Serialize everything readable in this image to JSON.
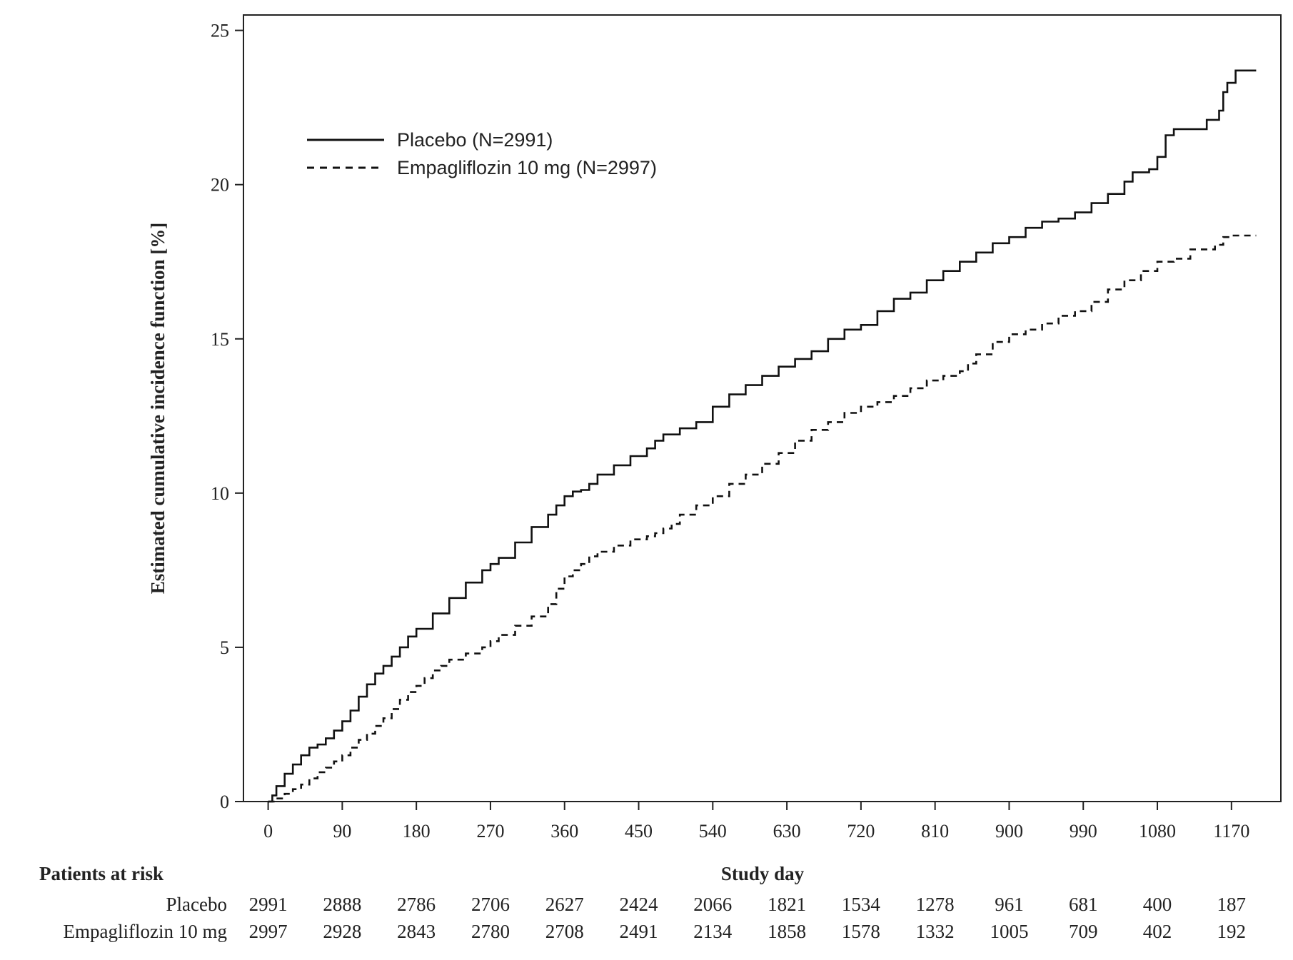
{
  "chart_data": {
    "type": "line",
    "title": "",
    "xlabel": "Study day",
    "ylabel": "Estimated cumulative incidence function [%]",
    "xlim": [
      -30,
      1230
    ],
    "ylim": [
      0,
      25.5
    ],
    "x_ticks": [
      0,
      90,
      180,
      270,
      360,
      450,
      540,
      630,
      720,
      810,
      900,
      990,
      1080,
      1170
    ],
    "y_ticks": [
      0,
      5,
      10,
      15,
      20,
      25
    ],
    "grid": false,
    "legend_position": "top-left",
    "series": [
      {
        "name": "Placebo (N=2991)",
        "style": "solid",
        "color": "#111111",
        "x": [
          0,
          5,
          10,
          20,
          30,
          40,
          50,
          60,
          70,
          80,
          90,
          100,
          110,
          120,
          130,
          140,
          150,
          160,
          170,
          180,
          200,
          220,
          240,
          260,
          270,
          280,
          300,
          320,
          340,
          350,
          360,
          370,
          380,
          390,
          400,
          420,
          440,
          460,
          470,
          480,
          500,
          520,
          540,
          560,
          580,
          600,
          620,
          640,
          660,
          680,
          700,
          720,
          740,
          760,
          780,
          800,
          820,
          840,
          860,
          880,
          900,
          920,
          940,
          960,
          980,
          1000,
          1020,
          1040,
          1050,
          1060,
          1070,
          1080,
          1090,
          1100,
          1140,
          1155,
          1160,
          1165,
          1175,
          1200
        ],
        "values": [
          0,
          0.2,
          0.5,
          0.9,
          1.2,
          1.5,
          1.75,
          1.85,
          2.05,
          2.3,
          2.6,
          2.95,
          3.4,
          3.8,
          4.15,
          4.4,
          4.7,
          5.0,
          5.35,
          5.6,
          6.1,
          6.6,
          7.1,
          7.5,
          7.7,
          7.9,
          8.4,
          8.9,
          9.3,
          9.6,
          9.9,
          10.05,
          10.1,
          10.3,
          10.6,
          10.9,
          11.2,
          11.45,
          11.7,
          11.9,
          12.1,
          12.3,
          12.8,
          13.2,
          13.5,
          13.8,
          14.1,
          14.35,
          14.6,
          15.0,
          15.3,
          15.45,
          15.9,
          16.3,
          16.5,
          16.9,
          17.2,
          17.5,
          17.8,
          18.1,
          18.3,
          18.6,
          18.8,
          18.9,
          19.1,
          19.4,
          19.7,
          20.1,
          20.4,
          20.4,
          20.5,
          20.9,
          21.6,
          21.8,
          22.1,
          22.4,
          23.0,
          23.3,
          23.7,
          23.7
        ]
      },
      {
        "name": "Empagliflozin 10 mg (N=2997)",
        "style": "dashed",
        "color": "#111111",
        "x": [
          0,
          10,
          20,
          30,
          40,
          50,
          60,
          70,
          80,
          90,
          100,
          110,
          120,
          130,
          140,
          150,
          160,
          170,
          180,
          190,
          200,
          210,
          220,
          240,
          260,
          270,
          280,
          300,
          320,
          340,
          350,
          360,
          370,
          380,
          390,
          400,
          420,
          440,
          460,
          470,
          480,
          490,
          500,
          520,
          540,
          560,
          580,
          600,
          620,
          640,
          660,
          680,
          700,
          720,
          740,
          760,
          780,
          800,
          820,
          840,
          850,
          860,
          880,
          900,
          920,
          940,
          960,
          980,
          1000,
          1020,
          1040,
          1060,
          1080,
          1100,
          1120,
          1150,
          1160,
          1170,
          1200
        ],
        "values": [
          0,
          0.1,
          0.25,
          0.4,
          0.55,
          0.75,
          0.95,
          1.1,
          1.3,
          1.5,
          1.75,
          2.0,
          2.2,
          2.45,
          2.7,
          3.0,
          3.3,
          3.55,
          3.75,
          4.0,
          4.25,
          4.4,
          4.6,
          4.8,
          5.0,
          5.2,
          5.4,
          5.7,
          6.0,
          6.4,
          6.9,
          7.3,
          7.5,
          7.7,
          7.95,
          8.1,
          8.3,
          8.5,
          8.6,
          8.7,
          8.85,
          9.0,
          9.3,
          9.6,
          9.9,
          10.3,
          10.6,
          10.95,
          11.3,
          11.7,
          12.05,
          12.3,
          12.6,
          12.8,
          12.95,
          13.15,
          13.4,
          13.65,
          13.8,
          13.95,
          14.2,
          14.5,
          14.9,
          15.15,
          15.3,
          15.5,
          15.75,
          15.9,
          16.2,
          16.6,
          16.9,
          17.2,
          17.5,
          17.6,
          17.9,
          18.05,
          18.3,
          18.35,
          18.35
        ]
      }
    ]
  },
  "risk_table": {
    "title": "Patients at risk",
    "rows": [
      {
        "label": "Placebo",
        "values": [
          "2991",
          "2888",
          "2786",
          "2706",
          "2627",
          "2424",
          "2066",
          "1821",
          "1534",
          "1278",
          "961",
          "681",
          "400",
          "187"
        ]
      },
      {
        "label": "Empagliflozin 10 mg",
        "values": [
          "2997",
          "2928",
          "2843",
          "2780",
          "2708",
          "2491",
          "2134",
          "1858",
          "1578",
          "1332",
          "1005",
          "709",
          "402",
          "192"
        ]
      }
    ]
  }
}
